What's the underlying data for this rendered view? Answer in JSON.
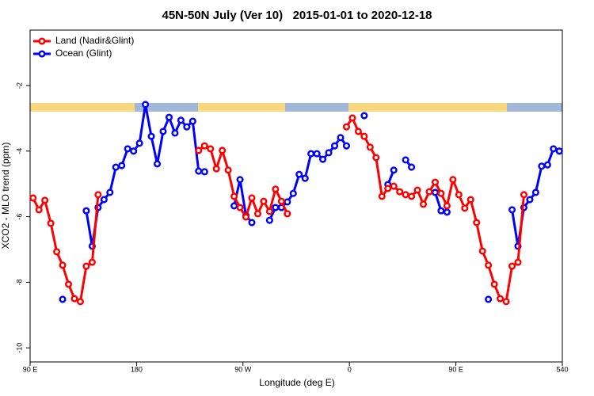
{
  "chart_data": {
    "type": "line",
    "title": "45N-50N July (Ver 10)   2015-01-01 to 2020-12-18",
    "x_label": "Longitude (deg E)",
    "y_label": "XCO2 - MLO trend (ppm)",
    "x": [
      92.5,
      97.5,
      102.5,
      107.5,
      112.5,
      117.5,
      122.5,
      127.5,
      132.5,
      137.5,
      142.5,
      147.5,
      152.5,
      157.5,
      162.5,
      167.5,
      172.5,
      177.5,
      182.5,
      187.5,
      192.5,
      197.5,
      202.5,
      207.5,
      212.5,
      217.5,
      222.5,
      227.5,
      232.5,
      237.5,
      242.5,
      247.5,
      252.5,
      257.5,
      262.5,
      267.5,
      272.5,
      277.5,
      282.5,
      287.5,
      292.5,
      297.5,
      302.5,
      307.5,
      312.5,
      317.5,
      322.5,
      327.5,
      332.5,
      337.5,
      342.5,
      347.5,
      352.5,
      357.5,
      362.5,
      367.5,
      372.5,
      377.5,
      382.5,
      387.5,
      392.5,
      397.5,
      402.5,
      407.5,
      412.5,
      417.5,
      422.5,
      427.5,
      432.5,
      437.5,
      442.5,
      447.5,
      452.5,
      457.5,
      462.5,
      467.5,
      472.5,
      477.5,
      482.5,
      487.5,
      492.5,
      497.5,
      502.5,
      507.5,
      512.5,
      517.5,
      522.5,
      527.5,
      532.5,
      537.5
    ],
    "series": [
      {
        "name": "Ocean (Glint)",
        "color": "#0000ff",
        "values": [
          null,
          null,
          null,
          null,
          null,
          -8.52,
          null,
          null,
          null,
          -5.82,
          -6.9,
          -5.72,
          -5.48,
          -5.26,
          -4.49,
          -4.44,
          -3.93,
          -4.0,
          -3.76,
          -2.58,
          -3.55,
          -4.39,
          -3.4,
          -2.97,
          -3.45,
          -3.06,
          -3.26,
          -3.09,
          -4.61,
          -4.63,
          null,
          null,
          null,
          null,
          -5.67,
          -4.87,
          -5.96,
          -6.18,
          null,
          null,
          -6.11,
          -5.72,
          -5.72,
          -5.55,
          -5.29,
          -4.71,
          -4.83,
          -4.08,
          -4.08,
          -4.25,
          -4.05,
          -3.84,
          -3.59,
          -3.84,
          null,
          null,
          -2.92,
          null,
          null,
          null,
          -5.02,
          -4.58,
          null,
          -4.27,
          -4.49,
          null,
          null,
          null,
          -5.26,
          -5.82,
          -5.86,
          null,
          null,
          null,
          null,
          null,
          null,
          -8.52,
          null,
          null,
          null,
          -5.79,
          -6.9,
          -5.72,
          -5.48,
          -5.26,
          -4.46,
          -4.42,
          -3.93,
          -4.0
        ]
      },
      {
        "name": "Land (Nadir&Glint)",
        "color": "#ff0000",
        "values": [
          -5.43,
          -5.79,
          -5.5,
          -6.2,
          -7.07,
          -7.48,
          -8.06,
          -8.5,
          -8.59,
          -7.51,
          -7.39,
          -5.33,
          null,
          null,
          null,
          null,
          null,
          null,
          null,
          null,
          null,
          null,
          null,
          null,
          null,
          null,
          null,
          null,
          -3.98,
          -3.84,
          -3.93,
          -4.54,
          -3.98,
          -4.58,
          -5.38,
          -5.72,
          -6.01,
          -5.43,
          -5.91,
          -5.53,
          -5.84,
          -5.16,
          -5.53,
          -5.91,
          null,
          null,
          null,
          null,
          null,
          null,
          null,
          null,
          null,
          -3.26,
          -2.99,
          -3.4,
          -3.55,
          -3.88,
          -4.2,
          -5.38,
          -5.14,
          -5.07,
          -5.24,
          -5.33,
          -5.38,
          -5.19,
          -5.62,
          -5.24,
          -4.95,
          -5.29,
          -5.67,
          -4.87,
          -5.33,
          -5.74,
          -5.48,
          -6.18,
          -7.05,
          -7.48,
          -8.06,
          -8.5,
          -8.59,
          -7.51,
          -7.39,
          -5.33,
          null,
          null,
          null,
          null,
          null,
          null
        ]
      }
    ],
    "legend_order": [
      1,
      0
    ],
    "legend": "top-left",
    "grid": false,
    "xlim": [
      90,
      540
    ],
    "xticks": [
      {
        "value": 90,
        "label": "90 E"
      },
      180,
      {
        "value": 270,
        "label": "90 W"
      },
      {
        "value": 360,
        "label": "0"
      },
      {
        "value": 450,
        "label": "90 E"
      },
      540
    ],
    "ylim": [
      -10.43,
      -0.31
    ],
    "yticks": [
      -2,
      -4,
      -6,
      -8,
      -10
    ]
  }
}
